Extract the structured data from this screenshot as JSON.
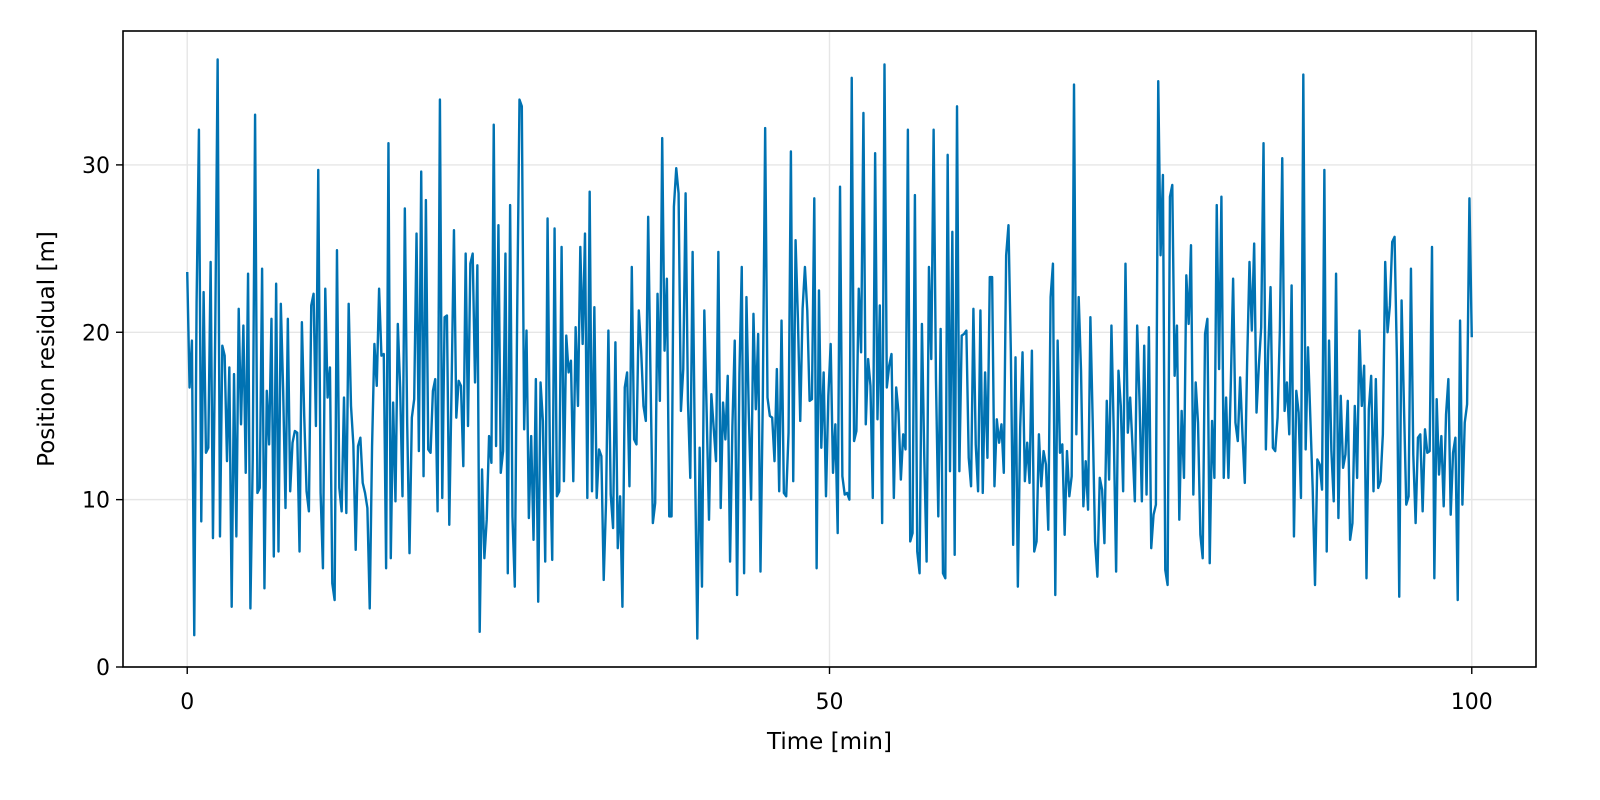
{
  "chart_data": {
    "type": "line",
    "title": "",
    "xlabel": "Time [min]",
    "ylabel": "Position residual [m]",
    "xlim": [
      -5,
      105
    ],
    "ylim": [
      0,
      38
    ],
    "xticks": [
      0,
      50,
      100
    ],
    "yticks": [
      0,
      10,
      20,
      30
    ],
    "grid": true,
    "legend": "none",
    "series": [
      {
        "color": "#0072b2",
        "x_start": 0,
        "x_end": 100,
        "values": [
          23.6,
          16.7,
          19.5,
          1.9,
          21.8,
          32.1,
          8.7,
          22.4,
          12.8,
          13.1,
          24.2,
          7.7,
          20.5,
          36.3,
          7.8,
          19.2,
          18.6,
          12.3,
          17.9,
          3.6,
          17.5,
          7.8,
          21.4,
          14.5,
          20.4,
          11.6,
          23.5,
          3.5,
          12.4,
          33.0,
          10.4,
          10.7,
          23.8,
          4.7,
          16.5,
          13.3,
          20.8,
          6.6,
          22.9,
          6.9,
          21.7,
          16.5,
          9.5,
          20.8,
          10.5,
          13.4,
          14.1,
          14.0,
          6.9,
          20.6,
          15.0,
          10.5,
          9.3,
          21.6,
          22.3,
          14.4,
          29.7,
          10.4,
          5.9,
          22.6,
          16.1,
          17.9,
          5.0,
          4.0,
          24.9,
          10.7,
          9.3,
          16.1,
          9.2,
          21.7,
          15.6,
          13.3,
          7.0,
          13.2,
          13.7,
          11.0,
          10.4,
          9.5,
          3.5,
          13.2,
          19.3,
          16.8,
          22.6,
          18.6,
          18.7,
          5.9,
          31.3,
          6.5,
          15.8,
          9.9,
          20.5,
          16.7,
          10.2,
          27.4,
          14.6,
          6.8,
          14.9,
          16.0,
          25.9,
          12.9,
          29.6,
          11.4,
          27.9,
          13.0,
          12.8,
          16.5,
          17.2,
          9.3,
          33.9,
          10.1,
          20.9,
          21.0,
          8.5,
          16.9,
          26.1,
          14.9,
          17.1,
          16.8,
          12.0,
          24.7,
          14.4,
          24.1,
          24.7,
          17.0,
          24.0,
          2.1,
          11.8,
          6.5,
          8.8,
          13.8,
          12.2,
          32.4,
          13.2,
          26.4,
          11.6,
          12.9,
          24.7,
          5.6,
          27.6,
          9.0,
          4.8,
          20.9,
          33.9,
          33.5,
          14.2,
          20.1,
          8.9,
          13.8,
          7.6,
          17.2,
          3.9,
          17.0,
          14.7,
          6.3,
          26.8,
          12.8,
          6.4,
          26.2,
          10.2,
          10.5,
          25.1,
          11.1,
          19.8,
          17.6,
          18.3,
          11.1,
          20.3,
          15.6,
          25.1,
          19.3,
          25.9,
          10.1,
          28.4,
          10.5,
          21.5,
          10.1,
          13.0,
          12.6,
          5.2,
          9.9,
          20.1,
          10.3,
          8.3,
          19.4,
          7.1,
          10.2,
          3.6,
          16.7,
          17.6,
          10.8,
          23.9,
          13.6,
          13.3,
          21.3,
          18.9,
          15.6,
          14.7,
          26.9,
          17.3,
          8.6,
          9.8,
          22.3,
          15.9,
          31.6,
          18.9,
          23.2,
          9.0,
          9.0,
          27.5,
          29.8,
          28.3,
          15.3,
          17.8,
          28.3,
          15.9,
          11.3,
          24.8,
          12.5,
          1.7,
          13.1,
          4.8,
          21.3,
          15.2,
          8.8,
          16.3,
          14.3,
          12.3,
          24.8,
          9.5,
          15.8,
          13.6,
          17.4,
          6.3,
          14.4,
          19.5,
          4.3,
          17.5,
          23.9,
          5.6,
          22.1,
          15.2,
          10.0,
          21.1,
          15.4,
          19.9,
          5.7,
          16.1,
          32.2,
          16.1,
          15.0,
          14.9,
          12.3,
          17.8,
          10.5,
          20.7,
          10.4,
          10.2,
          14.0,
          30.8,
          11.1,
          25.5,
          20.8,
          14.7,
          21.4,
          23.9,
          21.3,
          15.9,
          16.0,
          28.0,
          5.9,
          22.5,
          13.1,
          17.6,
          10.2,
          16.2,
          19.3,
          11.6,
          14.5,
          8.0,
          28.7,
          11.4,
          10.3,
          10.4,
          10.0,
          35.2,
          13.5,
          14.1,
          22.6,
          18.8,
          33.1,
          14.5,
          18.4,
          16.8,
          10.1,
          30.7,
          14.8,
          21.6,
          8.6,
          36.0,
          16.7,
          18.0,
          18.7,
          10.1,
          16.7,
          15.2,
          11.2,
          13.9,
          13.0,
          32.1,
          7.5,
          8.0,
          28.2,
          6.9,
          5.6,
          20.5,
          12.6,
          6.3,
          23.9,
          18.4,
          32.1,
          17.2,
          9.0,
          20.2,
          5.6,
          5.3,
          30.6,
          11.7,
          26.0,
          6.7,
          33.5,
          11.7,
          19.8,
          19.9,
          20.1,
          12.5,
          10.8,
          21.4,
          13.3,
          10.5,
          21.3,
          10.4,
          17.6,
          12.5,
          23.3,
          23.3,
          10.8,
          14.8,
          13.4,
          14.5,
          11.6,
          24.6,
          26.4,
          18.9,
          7.3,
          18.5,
          4.8,
          14.3,
          18.8,
          11.1,
          13.4,
          11.0,
          18.9,
          6.9,
          7.5,
          13.9,
          10.8,
          12.9,
          12.1,
          8.2,
          22.1,
          24.1,
          4.3,
          19.5,
          12.8,
          13.3,
          7.9,
          12.9,
          10.2,
          11.4,
          34.8,
          13.9,
          22.1,
          17.7,
          9.6,
          12.3,
          9.4,
          20.9,
          14.6,
          7.5,
          5.4,
          11.3,
          10.6,
          7.4,
          15.9,
          11.2,
          20.4,
          13.9,
          5.7,
          17.7,
          15.6,
          10.5,
          24.1,
          14.0,
          16.1,
          13.2,
          9.9,
          20.4,
          15.9,
          9.9,
          19.2,
          10.3,
          20.3,
          7.1,
          9.1,
          9.7,
          35.0,
          24.6,
          29.4,
          5.8,
          4.9,
          28.1,
          28.8,
          17.4,
          20.4,
          8.8,
          15.3,
          11.3,
          23.4,
          20.5,
          25.2,
          10.3,
          17.0,
          14.6,
          7.9,
          6.5,
          19.9,
          20.8,
          6.2,
          14.7,
          11.3,
          27.6,
          17.8,
          28.1,
          11.3,
          16.1,
          11.3,
          16.8,
          23.2,
          14.6,
          13.5,
          17.3,
          13.9,
          11.0,
          18.2,
          24.2,
          20.1,
          25.3,
          15.2,
          18.0,
          20.3,
          31.3,
          13.0,
          18.9,
          22.7,
          13.1,
          12.9,
          14.9,
          20.2,
          30.4,
          15.3,
          17.0,
          13.9,
          22.8,
          7.8,
          16.5,
          15.2,
          10.1,
          35.4,
          13.0,
          19.1,
          14.9,
          10.7,
          4.9,
          12.4,
          12.1,
          10.6,
          29.7,
          6.9,
          19.5,
          12.9,
          9.9,
          23.5,
          8.9,
          16.2,
          11.9,
          12.7,
          15.9,
          7.6,
          8.6,
          15.6,
          11.3,
          20.1,
          15.6,
          18.0,
          5.3,
          15.4,
          17.4,
          10.5,
          17.2,
          10.7,
          11.1,
          13.9,
          24.2,
          20.0,
          21.6,
          25.4,
          25.7,
          18.4,
          4.2,
          21.9,
          15.7,
          9.7,
          10.2,
          23.8,
          12.7,
          8.6,
          13.7,
          13.9,
          9.3,
          14.2,
          12.8,
          12.9,
          25.1,
          5.3,
          16.0,
          11.5,
          13.8,
          9.6,
          15.1,
          17.2,
          9.1,
          12.8,
          13.7,
          4.0,
          20.7,
          9.7,
          14.6,
          15.7,
          28.0,
          19.7
        ]
      }
    ]
  }
}
